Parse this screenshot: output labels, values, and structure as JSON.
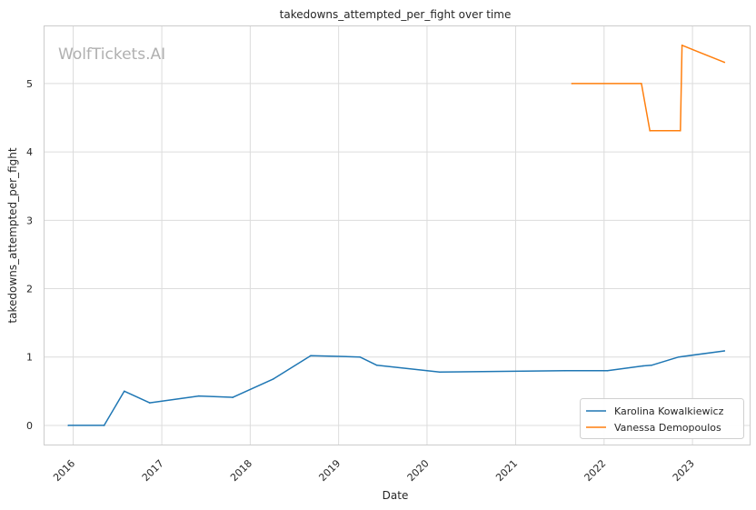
{
  "chart_data": {
    "type": "line",
    "title": "takedowns_attempted_per_fight over time",
    "xlabel": "Date",
    "ylabel": "takedowns_attempted_per_fight",
    "watermark": "WolfTickets.AI",
    "x_ticks": [
      "2016",
      "2017",
      "2018",
      "2019",
      "2020",
      "2021",
      "2022",
      "2023"
    ],
    "y_ticks": [
      "0",
      "1",
      "2",
      "3",
      "4",
      "5"
    ],
    "xlim": [
      "2015-09-01",
      "2023-08-25"
    ],
    "ylim": [
      -0.28,
      5.85
    ],
    "grid": true,
    "legend_position": "bottom-right",
    "series": [
      {
        "name": "Karolina Kowalkiewicz",
        "color": "#1f77b4",
        "points": [
          [
            "2015-12-12",
            0
          ],
          [
            "2016-05-08",
            0
          ],
          [
            "2016-07-30",
            0.5
          ],
          [
            "2016-11-12",
            0.33
          ],
          [
            "2017-06-03",
            0.43
          ],
          [
            "2017-10-21",
            0.41
          ],
          [
            "2018-04-07",
            0.68
          ],
          [
            "2018-09-08",
            1.02
          ],
          [
            "2019-03-30",
            1.0
          ],
          [
            "2019-06-08",
            0.88
          ],
          [
            "2020-02-22",
            0.78
          ],
          [
            "2021-07-24",
            0.8
          ],
          [
            "2022-01-15",
            0.8
          ],
          [
            "2022-06-11",
            0.87
          ],
          [
            "2022-07-16",
            0.88
          ],
          [
            "2022-11-05",
            1.0
          ],
          [
            "2023-05-13",
            1.09
          ]
        ]
      },
      {
        "name": "Vanessa Demopoulos",
        "color": "#ff7f0e",
        "points": [
          [
            "2021-08-21",
            5.0
          ],
          [
            "2022-06-04",
            5.0
          ],
          [
            "2022-07-09",
            4.31
          ],
          [
            "2022-11-12",
            4.31
          ],
          [
            "2022-11-19",
            5.56
          ],
          [
            "2023-05-13",
            5.31
          ]
        ]
      }
    ]
  }
}
